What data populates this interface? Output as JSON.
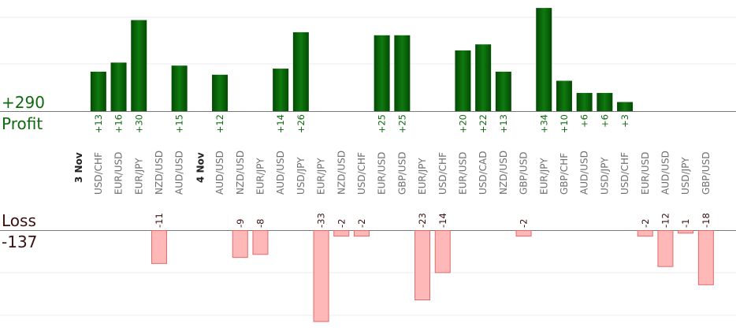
{
  "summary": {
    "profit_total": "+290",
    "profit_label": "Profit",
    "loss_label": "Loss",
    "loss_total": "-137"
  },
  "colors": {
    "profit_bar": "#0b6a0b",
    "profit_text": "#0f6a0f",
    "loss_bar": "#ffb8b8",
    "loss_bar_border": "#e06a6a",
    "loss_text": "#3a1010",
    "pair_text": "#707070"
  },
  "chart_data": {
    "type": "bar",
    "days": [
      {
        "label": "3 Nov",
        "trades": [
          {
            "pair": "USD/CHF",
            "value": 13
          },
          {
            "pair": "EUR/USD",
            "value": 16
          },
          {
            "pair": "EUR/JPY",
            "value": 30
          },
          {
            "pair": "NZD/USD",
            "value": -11
          },
          {
            "pair": "AUD/USD",
            "value": 15
          }
        ]
      },
      {
        "label": "4 Nov",
        "trades": [
          {
            "pair": "AUD/USD",
            "value": 12
          },
          {
            "pair": "NZD/USD",
            "value": -9
          },
          {
            "pair": "EUR/JPY",
            "value": -8
          },
          {
            "pair": "AUD/USD",
            "value": 14
          },
          {
            "pair": "USD/JPY",
            "value": 26
          },
          {
            "pair": "EUR/JPY",
            "value": -33
          },
          {
            "pair": "NZD/USD",
            "value": -2
          },
          {
            "pair": "USD/CHF",
            "value": -2
          },
          {
            "pair": "EUR/USD",
            "value": 25
          },
          {
            "pair": "GBP/USD",
            "value": 25
          },
          {
            "pair": "EUR/JPY",
            "value": -23
          },
          {
            "pair": "USD/CHF",
            "value": -14
          },
          {
            "pair": "EUR/USD",
            "value": 20
          },
          {
            "pair": "USD/CAD",
            "value": 22
          },
          {
            "pair": "NZD/USD",
            "value": 13
          },
          {
            "pair": "GBP/USD",
            "value": -2
          },
          {
            "pair": "EUR/JPY",
            "value": 34
          },
          {
            "pair": "GBP/CHF",
            "value": 10
          },
          {
            "pair": "AUD/USD",
            "value": 6
          },
          {
            "pair": "USD/JPY",
            "value": 6
          },
          {
            "pair": "USD/CHF",
            "value": 3
          },
          {
            "pair": "EUR/USD",
            "value": -2
          },
          {
            "pair": "AUD/USD",
            "value": -12
          },
          {
            "pair": "USD/JPY",
            "value": -1
          },
          {
            "pair": "GBP/USD",
            "value": -18
          }
        ]
      }
    ],
    "grid": true
  }
}
